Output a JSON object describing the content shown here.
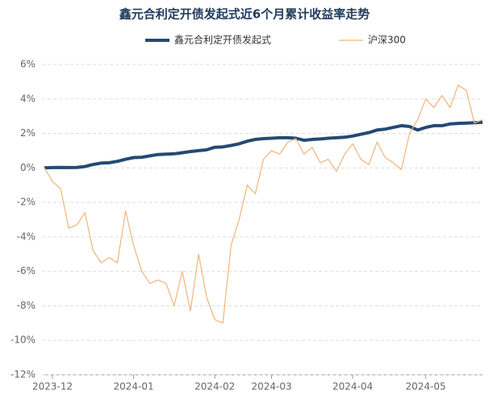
{
  "chart_data": {
    "type": "line",
    "title": "鑫元合利定开债发起式近6个月累计收益率走势",
    "categories": [
      null,
      "2023-12",
      null,
      null,
      null,
      null,
      null,
      null,
      null,
      null,
      null,
      "2024-01",
      null,
      null,
      null,
      null,
      null,
      null,
      null,
      null,
      null,
      "2024-02",
      null,
      null,
      null,
      null,
      null,
      null,
      "2024-03",
      null,
      null,
      null,
      null,
      null,
      null,
      null,
      null,
      null,
      "2024-04",
      null,
      null,
      null,
      null,
      null,
      null,
      null,
      null,
      "2024-05",
      null,
      null,
      null,
      null,
      null,
      null,
      null
    ],
    "series": [
      {
        "name": "鑫元合利定开债发起式",
        "color": "#254a72",
        "width": 4,
        "values": [
          0,
          0.02,
          0.03,
          0.02,
          0.03,
          0.08,
          0.2,
          0.28,
          0.3,
          0.38,
          0.5,
          0.6,
          0.62,
          0.7,
          0.78,
          0.8,
          0.82,
          0.88,
          0.95,
          1.0,
          1.05,
          1.2,
          1.22,
          1.3,
          1.4,
          1.55,
          1.65,
          1.7,
          1.72,
          1.75,
          1.75,
          1.72,
          1.6,
          1.65,
          1.68,
          1.72,
          1.75,
          1.78,
          1.85,
          1.95,
          2.05,
          2.2,
          2.25,
          2.35,
          2.45,
          2.4,
          2.2,
          2.35,
          2.45,
          2.45,
          2.55,
          2.58,
          2.6,
          2.62,
          2.65
        ]
      },
      {
        "name": "沪深300",
        "color": "#f0b47a",
        "width": 1.2,
        "values": [
          0,
          -0.8,
          -1.2,
          -3.5,
          -3.3,
          -2.6,
          -4.8,
          -5.5,
          -5.2,
          -5.5,
          -2.5,
          -4.5,
          -6.0,
          -6.7,
          -6.5,
          -6.7,
          -8.0,
          -6.0,
          -8.3,
          -5.0,
          -7.5,
          -8.8,
          -9.0,
          -4.5,
          -3.0,
          -1.0,
          -1.5,
          0.5,
          1.0,
          0.8,
          1.5,
          1.7,
          0.8,
          1.2,
          0.3,
          0.5,
          -0.2,
          0.8,
          1.4,
          0.5,
          0.2,
          1.5,
          0.6,
          0.3,
          -0.1,
          2.0,
          2.8,
          4.0,
          3.5,
          4.2,
          3.5,
          4.8,
          4.5,
          2.6,
          2.8
        ]
      }
    ],
    "ylim": [
      -12,
      6
    ],
    "yticks": [
      {
        "value": -12,
        "label": "-12%"
      },
      {
        "value": -10,
        "label": "-10%"
      },
      {
        "value": -8,
        "label": "-8%"
      },
      {
        "value": -6,
        "label": "-6%"
      },
      {
        "value": -4,
        "label": "-4%"
      },
      {
        "value": -2,
        "label": "-2%"
      },
      {
        "value": 0,
        "label": "0%"
      },
      {
        "value": 2,
        "label": "2%"
      },
      {
        "value": 4,
        "label": "4%"
      },
      {
        "value": 6,
        "label": "6%"
      }
    ],
    "grid": true
  }
}
